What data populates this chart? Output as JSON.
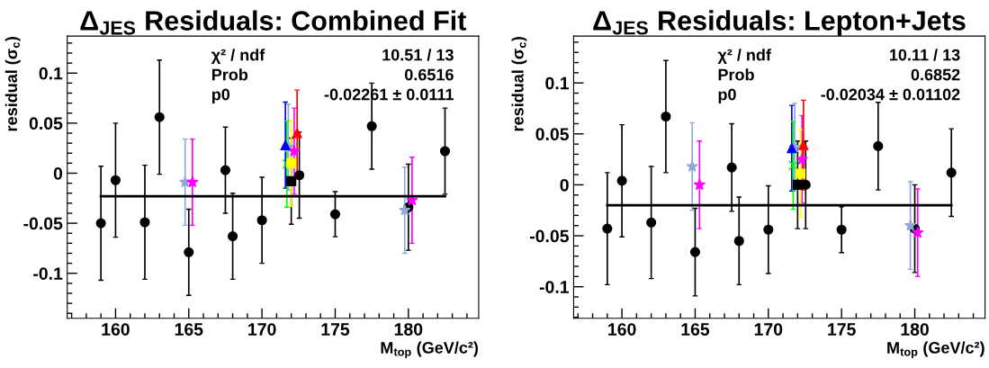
{
  "chart_data": [
    {
      "type": "scatter",
      "title": "Δ$_{JES}$ Residuals: Combined Fit",
      "xlabel": "M$_{top}$ (GeV/c²)",
      "ylabel": "residual (σ$_{c}$)",
      "xlim": [
        156.7,
        184.8
      ],
      "ylim": [
        -0.145,
        0.137
      ],
      "xticks": [
        160,
        165,
        170,
        175,
        180
      ],
      "yticks": [
        -0.1,
        -0.05,
        0,
        0.05,
        0.1
      ],
      "grid": false,
      "legend": false,
      "annotations": [
        "χ² / ndf",
        "10.51 / 13",
        "Prob",
        "0.6516",
        "p0",
        "-0.02261 ± 0.0111"
      ],
      "series": [
        {
          "marker": "circle",
          "color": "#000000",
          "x": [
            159,
            160,
            162,
            163,
            165,
            167.5,
            168,
            170,
            172.55,
            175,
            177.5,
            180,
            182.5
          ],
          "values": [
            -0.05,
            -0.007,
            -0.049,
            0.056,
            -0.079,
            0.003,
            -0.063,
            -0.047,
            -0.002,
            -0.041,
            0.047,
            -0.034,
            0.022
          ],
          "errors": [
            0.057,
            0.057,
            0.057,
            0.057,
            0.043,
            0.043,
            0.043,
            0.043,
            0.043,
            0.0225,
            0.043,
            0.043,
            0.043
          ]
        },
        {
          "type": "scatter",
          "marker": "square",
          "color": "#000000",
          "x": [
            172.0
          ],
          "values": [
            -0.008
          ],
          "errors": [
            0.043
          ]
        },
        {
          "type": "scatter",
          "marker": "star",
          "color": "#8fa8d8",
          "x": [
            164.75,
            171.8,
            179.75
          ],
          "values": [
            -0.009,
            0.026,
            -0.037
          ],
          "errors": [
            0.043,
            0.043,
            0.043
          ]
        },
        {
          "type": "scatter",
          "marker": "star",
          "color": "#ff00ff",
          "x": [
            165.25,
            172.2,
            180.25
          ],
          "values": [
            -0.009,
            0.022,
            -0.027
          ],
          "errors": [
            0.043,
            0.043,
            0.043
          ]
        },
        {
          "type": "scatter",
          "marker": "triangle",
          "color": "#0000ff",
          "x": [
            171.6
          ],
          "values": [
            0.028
          ],
          "errors": [
            0.043
          ]
        },
        {
          "type": "scatter",
          "marker": "cross",
          "color": "#00ff00",
          "x": [
            171.7
          ],
          "values": [
            0.009
          ],
          "errors": [
            0.043
          ]
        },
        {
          "type": "scatter",
          "marker": "square",
          "color": "#ffff00",
          "x": [
            172.0
          ],
          "values": [
            0.01
          ],
          "errors": [
            0.043
          ]
        },
        {
          "type": "scatter",
          "marker": "triangle",
          "color": "#ff0000",
          "x": [
            172.4
          ],
          "values": [
            0.04
          ],
          "errors": [
            0.043
          ]
        },
        {
          "type": "line",
          "marker": "none",
          "color": "#000000",
          "x": [
            159,
            182.5
          ],
          "values": [
            -0.023,
            -0.023
          ]
        }
      ]
    },
    {
      "type": "scatter",
      "title": "Δ$_{JES}$ Residuals: Lepton+Jets",
      "xlabel": "M$_{top}$ (GeV/c²)",
      "ylabel": "residual (σ$_{c}$)",
      "xlim": [
        156.7,
        184.8
      ],
      "ylim": [
        -0.131,
        0.146
      ],
      "xticks": [
        160,
        165,
        170,
        175,
        180
      ],
      "yticks": [
        -0.1,
        -0.05,
        0,
        0.05,
        0.1
      ],
      "grid": false,
      "legend": false,
      "annotations": [
        "χ² / ndf",
        "10.11 / 13",
        "Prob",
        "0.6852",
        "p0",
        "-0.02034 ± 0.01102"
      ],
      "series": [
        {
          "marker": "circle",
          "color": "#000000",
          "x": [
            159,
            160,
            162,
            163,
            165,
            167.5,
            168,
            170,
            172.55,
            175,
            177.5,
            180,
            182.5
          ],
          "values": [
            -0.043,
            0.004,
            -0.037,
            0.067,
            -0.066,
            0.017,
            -0.055,
            -0.044,
            0.0,
            -0.044,
            0.038,
            -0.043,
            0.012
          ],
          "errors": [
            0.055,
            0.055,
            0.055,
            0.055,
            0.043,
            0.043,
            0.043,
            0.043,
            0.043,
            0.0225,
            0.043,
            0.043,
            0.043
          ]
        },
        {
          "type": "scatter",
          "marker": "square",
          "color": "#000000",
          "x": [
            172.0
          ],
          "values": [
            0.0
          ],
          "errors": [
            0.043
          ]
        },
        {
          "type": "scatter",
          "marker": "star",
          "color": "#8fa8d8",
          "x": [
            164.8,
            171.8,
            179.7
          ],
          "values": [
            0.018,
            0.037,
            -0.04
          ],
          "errors": [
            0.043,
            0.043,
            0.043
          ]
        },
        {
          "type": "scatter",
          "marker": "star",
          "color": "#ff00ff",
          "x": [
            165.3,
            172.3,
            180.2
          ],
          "values": [
            0.0,
            0.025,
            -0.047
          ],
          "errors": [
            0.043,
            0.043,
            0.043
          ]
        },
        {
          "type": "scatter",
          "marker": "triangle",
          "color": "#0000ff",
          "x": [
            171.6
          ],
          "values": [
            0.036
          ],
          "errors": [
            0.042
          ]
        },
        {
          "type": "scatter",
          "marker": "cross",
          "color": "#00ff00",
          "x": [
            171.7
          ],
          "values": [
            0.019
          ],
          "errors": [
            0.043
          ]
        },
        {
          "type": "scatter",
          "marker": "square",
          "color": "#ffff00",
          "x": [
            172.2
          ],
          "values": [
            0.011
          ],
          "errors": [
            0.043
          ]
        },
        {
          "type": "scatter",
          "marker": "triangle",
          "color": "#ff0000",
          "x": [
            172.4
          ],
          "values": [
            0.039
          ],
          "errors": [
            0.044
          ]
        },
        {
          "type": "line",
          "marker": "none",
          "color": "#000000",
          "x": [
            159,
            182.5
          ],
          "values": [
            -0.02,
            -0.02
          ]
        }
      ]
    }
  ]
}
